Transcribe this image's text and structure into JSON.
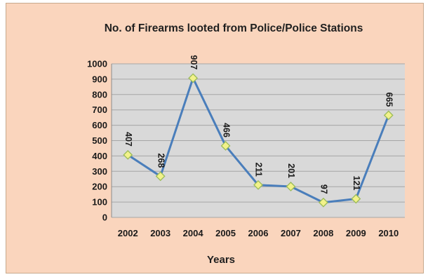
{
  "chart_data": {
    "type": "line",
    "title": "No. of Firearms looted from Police/Police Stations",
    "xlabel": "Years",
    "ylabel": "",
    "categories": [
      "2002",
      "2003",
      "2004",
      "2005",
      "2006",
      "2007",
      "2008",
      "2009",
      "2010"
    ],
    "series": [
      {
        "values": [
          407,
          268,
          907,
          466,
          211,
          201,
          97,
          121,
          665
        ]
      }
    ],
    "data_labels": [
      "407",
      "268",
      "907",
      "466",
      "211",
      "201",
      "97",
      "121",
      "665"
    ],
    "ylim": [
      0,
      1000
    ],
    "yticks": [
      "0",
      "100",
      "200",
      "300",
      "400",
      "500",
      "600",
      "700",
      "800",
      "900",
      "1000"
    ],
    "grid": true,
    "legend": "none",
    "colors": {
      "chart_background": "#fad5bd",
      "plot_background": "#d9d9d9",
      "gridline": "#a6a6a6",
      "line": "#4a7ebb",
      "marker_fill": "#f2f28a",
      "marker_stroke": "#9bbb59"
    }
  }
}
